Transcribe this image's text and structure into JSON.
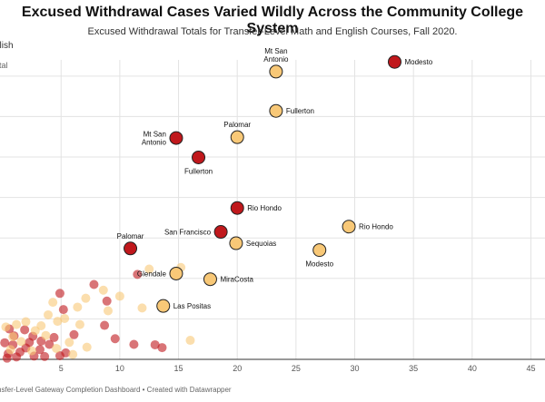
{
  "chart_data": {
    "type": "scatter",
    "title": "Excused Withdrawal Cases Varied Wildly Across the Community College System",
    "subtitle": "Excused Withdrawal Totals for Transfer-Level Math and English Courses, Fall 2020.",
    "legend_text": "glish",
    "ylabel": "otal",
    "xlabel": "",
    "xlim": [
      -0.2,
      46.2
    ],
    "ylim": [
      0,
      74
    ],
    "x_ticks": [
      5,
      10,
      15,
      20,
      25,
      30,
      35,
      40,
      45
    ],
    "y_gridlines": [
      10,
      20,
      30,
      40,
      50,
      60,
      70
    ],
    "grid": true,
    "colors": {
      "math": "#c0181c",
      "english": "#f8c877",
      "outline": "#222222"
    },
    "series": [
      {
        "key": "math",
        "points": [
          {
            "x": 33.4,
            "y": 73.5,
            "label": "Modesto",
            "label_pos": "right"
          },
          {
            "x": 14.8,
            "y": 54.7,
            "label": "Mt San\nAntonio",
            "label_pos": "left"
          },
          {
            "x": 16.7,
            "y": 49.9,
            "label": "Fullerton",
            "label_pos": "below"
          },
          {
            "x": 20.0,
            "y": 37.4,
            "label": "Rio Hondo",
            "label_pos": "right"
          },
          {
            "x": 18.6,
            "y": 31.5,
            "label": "San Francisco",
            "label_pos": "left"
          },
          {
            "x": 10.9,
            "y": 27.4,
            "label": "Palomar",
            "label_pos": "above"
          },
          {
            "x": 11.5,
            "y": 21.0
          },
          {
            "x": 7.8,
            "y": 18.5
          },
          {
            "x": 4.9,
            "y": 16.3
          },
          {
            "x": 8.9,
            "y": 14.4
          },
          {
            "x": 9.6,
            "y": 5.1
          },
          {
            "x": 13.0,
            "y": 3.6
          },
          {
            "x": 13.6,
            "y": 2.9
          },
          {
            "x": 11.2,
            "y": 3.7
          },
          {
            "x": 8.7,
            "y": 8.4
          },
          {
            "x": 5.2,
            "y": 12.3
          },
          {
            "x": 6.1,
            "y": 6.1
          },
          {
            "x": 1.0,
            "y": 5.8
          },
          {
            "x": 1.5,
            "y": 1.8
          },
          {
            "x": 2.3,
            "y": 4.2
          },
          {
            "x": 3.6,
            "y": 0.7
          },
          {
            "x": 4.0,
            "y": 3.7
          },
          {
            "x": 3.2,
            "y": 2.4
          },
          {
            "x": 0.9,
            "y": 3.6
          },
          {
            "x": 0.5,
            "y": 1.4
          },
          {
            "x": 2.7,
            "y": 0.8
          },
          {
            "x": 5.4,
            "y": 1.6
          },
          {
            "x": 0.2,
            "y": 4.1
          },
          {
            "x": 1.2,
            "y": 0.6
          },
          {
            "x": 2.0,
            "y": 2.8
          },
          {
            "x": 4.4,
            "y": 5.4
          },
          {
            "x": 1.9,
            "y": 7.3
          },
          {
            "x": 0.6,
            "y": 7.5
          },
          {
            "x": 2.6,
            "y": 5.7
          },
          {
            "x": 3.3,
            "y": 4.5
          },
          {
            "x": 0.4,
            "y": 0.3
          },
          {
            "x": 4.9,
            "y": 0.9
          }
        ]
      },
      {
        "key": "english",
        "points": [
          {
            "x": 23.3,
            "y": 71.1,
            "label": "Mt San\nAntonio",
            "label_pos": "above"
          },
          {
            "x": 23.3,
            "y": 61.4,
            "label": "Fullerton",
            "label_pos": "right"
          },
          {
            "x": 20.0,
            "y": 54.9,
            "label": "Palomar",
            "label_pos": "above"
          },
          {
            "x": 29.5,
            "y": 32.8,
            "label": "Rio Hondo",
            "label_pos": "right"
          },
          {
            "x": 19.9,
            "y": 28.7,
            "label": "Sequoias",
            "label_pos": "right"
          },
          {
            "x": 27.0,
            "y": 27.0,
            "label": "Modesto",
            "label_pos": "below"
          },
          {
            "x": 14.8,
            "y": 21.2,
            "label": "Glendale",
            "label_pos": "left"
          },
          {
            "x": 17.7,
            "y": 19.8,
            "label": "MiraCosta",
            "label_pos": "right"
          },
          {
            "x": 13.7,
            "y": 13.2,
            "label": "Las Positas",
            "label_pos": "right"
          },
          {
            "x": 15.2,
            "y": 22.7
          },
          {
            "x": 12.5,
            "y": 22.3
          },
          {
            "x": 11.9,
            "y": 12.7
          },
          {
            "x": 10.0,
            "y": 15.6
          },
          {
            "x": 7.1,
            "y": 15.1
          },
          {
            "x": 6.4,
            "y": 12.9
          },
          {
            "x": 4.3,
            "y": 14.1
          },
          {
            "x": 5.3,
            "y": 10.1
          },
          {
            "x": 8.6,
            "y": 17.1
          },
          {
            "x": 16.0,
            "y": 4.7
          },
          {
            "x": 7.2,
            "y": 3.0
          },
          {
            "x": 1.2,
            "y": 8.6
          },
          {
            "x": 4.7,
            "y": 9.4
          },
          {
            "x": 2.0,
            "y": 9.3
          },
          {
            "x": 3.3,
            "y": 8.3
          },
          {
            "x": 2.8,
            "y": 7.1
          },
          {
            "x": 0.9,
            "y": 5.6
          },
          {
            "x": 5.7,
            "y": 4.2
          },
          {
            "x": 1.6,
            "y": 4.4
          },
          {
            "x": 2.5,
            "y": 2.1
          },
          {
            "x": 4.6,
            "y": 2.7
          },
          {
            "x": 0.7,
            "y": 2.4
          },
          {
            "x": 3.7,
            "y": 5.9
          },
          {
            "x": 6.6,
            "y": 8.6
          },
          {
            "x": 9.0,
            "y": 12.0
          },
          {
            "x": 0.3,
            "y": 8.0
          },
          {
            "x": 3.9,
            "y": 11.0
          },
          {
            "x": 6.0,
            "y": 1.2
          }
        ]
      }
    ]
  },
  "footer": "nsfer-Level Gateway Completion Dashboard • Created with Datawrapper"
}
